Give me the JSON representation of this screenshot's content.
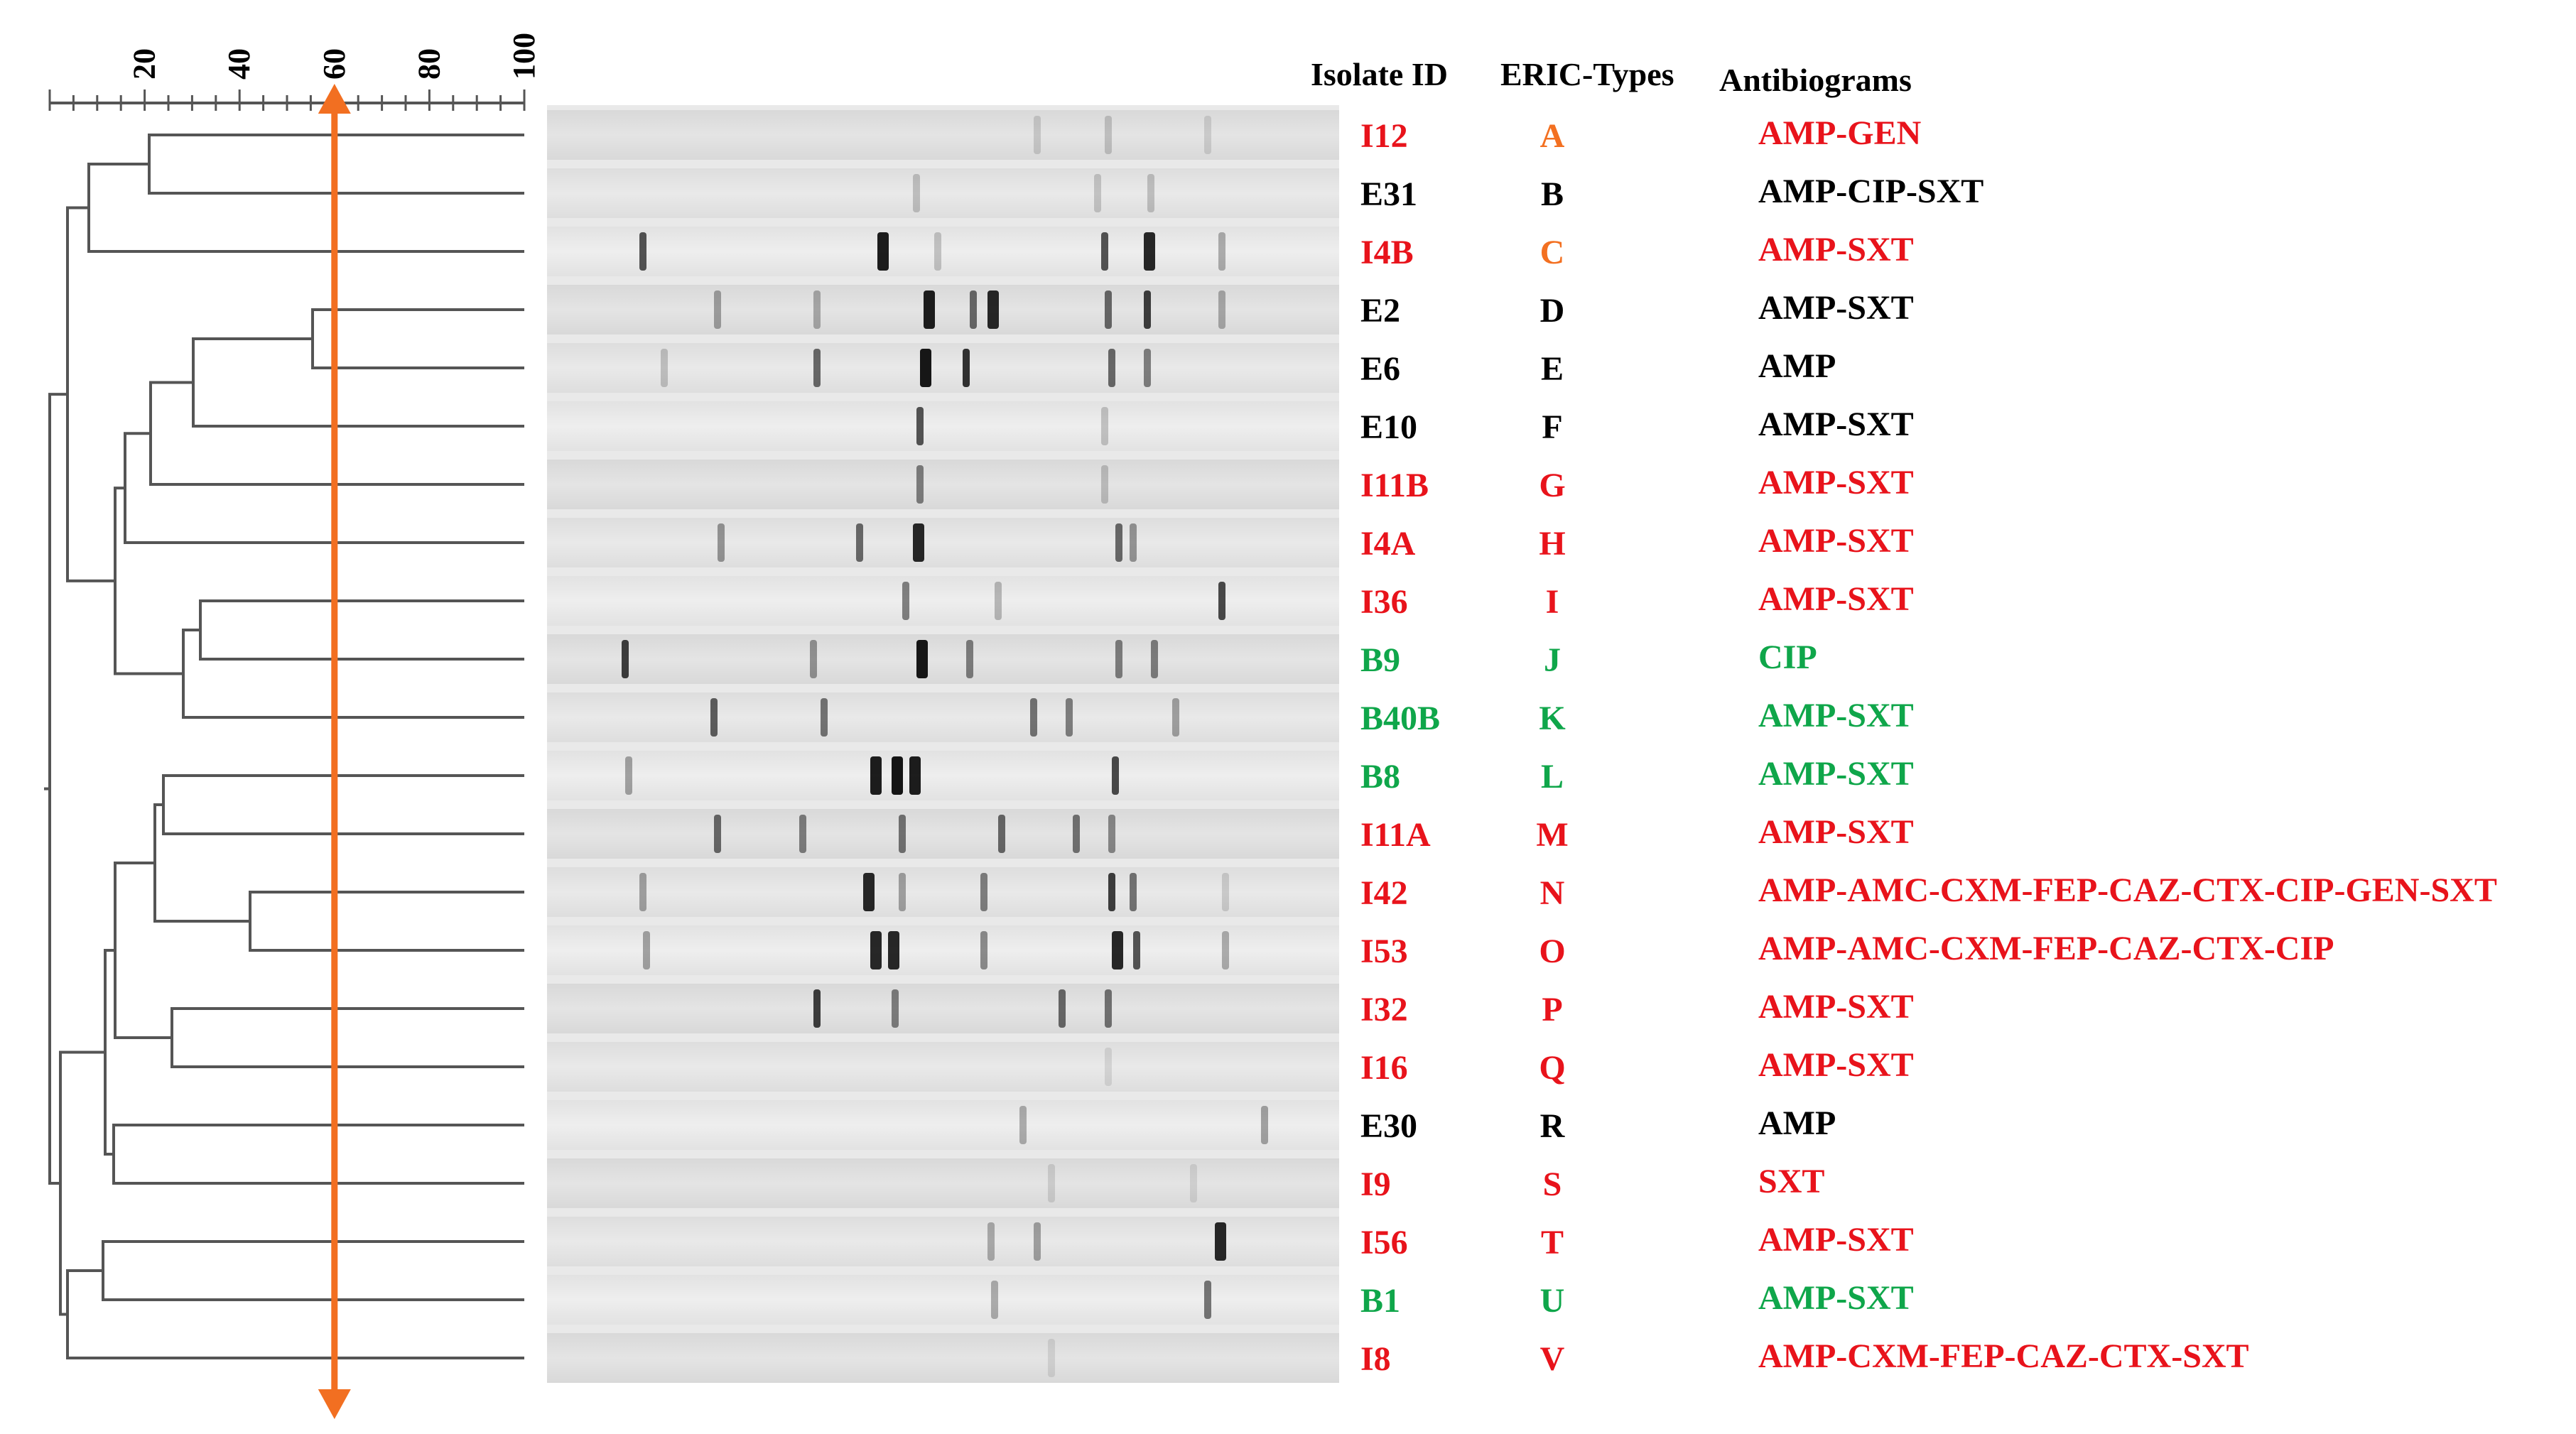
{
  "colors": {
    "red": "#e8131b",
    "black": "#000000",
    "green": "#0fa64a",
    "orange": "#f37021",
    "arrow": "#f26f21",
    "tree": "#555555"
  },
  "headers": {
    "isolate": "Isolate ID",
    "eric": "ERIC-Types",
    "antibiogram": "Antibiograms"
  },
  "scale": {
    "ticks": [
      "20",
      "40",
      "60",
      "80",
      "100"
    ],
    "cutoff": 60
  },
  "rows": [
    {
      "isolate": "I12",
      "eric": "A",
      "antibiogram": "AMP-GEN",
      "c_iso": "red",
      "c_eric": "orange",
      "c_ab": "red"
    },
    {
      "isolate": "E31",
      "eric": "B",
      "antibiogram": "AMP-CIP-SXT",
      "c_iso": "black",
      "c_eric": "black",
      "c_ab": "black"
    },
    {
      "isolate": "I4B",
      "eric": "C",
      "antibiogram": "AMP-SXT",
      "c_iso": "red",
      "c_eric": "orange",
      "c_ab": "red"
    },
    {
      "isolate": "E2",
      "eric": "D",
      "antibiogram": "AMP-SXT",
      "c_iso": "black",
      "c_eric": "black",
      "c_ab": "black"
    },
    {
      "isolate": "E6",
      "eric": "E",
      "antibiogram": "AMP",
      "c_iso": "black",
      "c_eric": "black",
      "c_ab": "black"
    },
    {
      "isolate": "E10",
      "eric": "F",
      "antibiogram": "AMP-SXT",
      "c_iso": "black",
      "c_eric": "black",
      "c_ab": "black"
    },
    {
      "isolate": "I11B",
      "eric": "G",
      "antibiogram": "AMP-SXT",
      "c_iso": "red",
      "c_eric": "red",
      "c_ab": "red"
    },
    {
      "isolate": "I4A",
      "eric": "H",
      "antibiogram": "AMP-SXT",
      "c_iso": "red",
      "c_eric": "red",
      "c_ab": "red"
    },
    {
      "isolate": "I36",
      "eric": "I",
      "antibiogram": "AMP-SXT",
      "c_iso": "red",
      "c_eric": "red",
      "c_ab": "red"
    },
    {
      "isolate": "B9",
      "eric": "J",
      "antibiogram": "CIP",
      "c_iso": "green",
      "c_eric": "green",
      "c_ab": "green"
    },
    {
      "isolate": "B40B",
      "eric": "K",
      "antibiogram": "AMP-SXT",
      "c_iso": "green",
      "c_eric": "green",
      "c_ab": "green"
    },
    {
      "isolate": "B8",
      "eric": "L",
      "antibiogram": "AMP-SXT",
      "c_iso": "green",
      "c_eric": "green",
      "c_ab": "green"
    },
    {
      "isolate": "I11A",
      "eric": "M",
      "antibiogram": "AMP-SXT",
      "c_iso": "red",
      "c_eric": "red",
      "c_ab": "red"
    },
    {
      "isolate": "I42",
      "eric": "N",
      "antibiogram": "AMP-AMC-CXM-FEP-CAZ-CTX-CIP-GEN-SXT",
      "c_iso": "red",
      "c_eric": "red",
      "c_ab": "red"
    },
    {
      "isolate": "I53",
      "eric": "O",
      "antibiogram": "AMP-AMC-CXM-FEP-CAZ-CTX-CIP",
      "c_iso": "red",
      "c_eric": "red",
      "c_ab": "red"
    },
    {
      "isolate": "I32",
      "eric": "P",
      "antibiogram": "AMP-SXT",
      "c_iso": "red",
      "c_eric": "red",
      "c_ab": "red"
    },
    {
      "isolate": "I16",
      "eric": "Q",
      "antibiogram": "AMP-SXT",
      "c_iso": "red",
      "c_eric": "red",
      "c_ab": "red"
    },
    {
      "isolate": "E30",
      "eric": "R",
      "antibiogram": "AMP",
      "c_iso": "black",
      "c_eric": "black",
      "c_ab": "black"
    },
    {
      "isolate": "I9",
      "eric": "S",
      "antibiogram": "SXT",
      "c_iso": "red",
      "c_eric": "red",
      "c_ab": "red"
    },
    {
      "isolate": "I56",
      "eric": "T",
      "antibiogram": "AMP-SXT",
      "c_iso": "red",
      "c_eric": "red",
      "c_ab": "red"
    },
    {
      "isolate": "B1",
      "eric": "U",
      "antibiogram": "AMP-SXT",
      "c_iso": "green",
      "c_eric": "green",
      "c_ab": "green"
    },
    {
      "isolate": "I8",
      "eric": "V",
      "antibiogram": "AMP-CXM-FEP-CAZ-CTX-SXT",
      "c_iso": "red",
      "c_eric": "red",
      "c_ab": "red"
    }
  ]
}
